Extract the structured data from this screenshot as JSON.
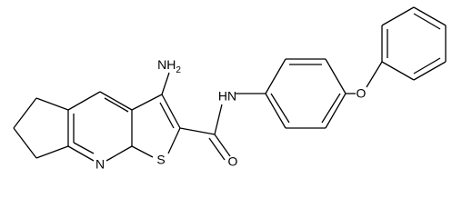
{
  "atoms": {
    "amine": {
      "text": "NH",
      "subscript": "2"
    },
    "amide_n": "HN",
    "carbonyl_o": "O",
    "ether_o": "O",
    "pyridine_n": "N",
    "thiophene_s": "S"
  }
}
